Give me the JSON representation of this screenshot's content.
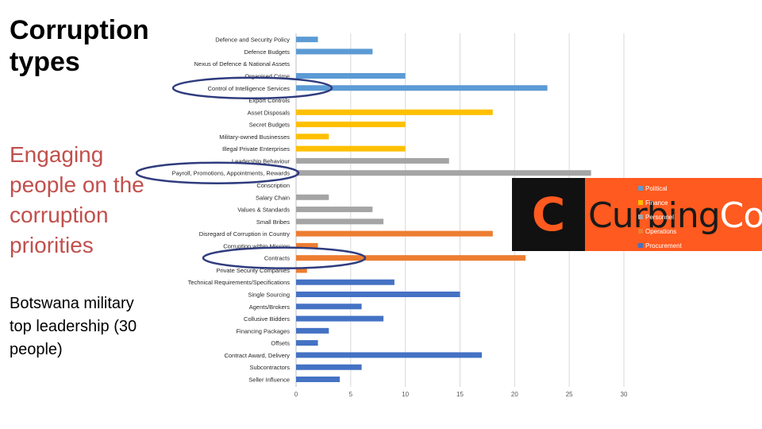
{
  "slide": {
    "title": "Corruption types",
    "subtitle": "Engaging people on the corruption priorities",
    "note": "Botswana military top leadership (30 people)"
  },
  "logo": {
    "mark": "C",
    "text_dark": "Curbing",
    "text_light": "Corru"
  },
  "chart_data": {
    "type": "bar",
    "orientation": "horizontal",
    "xlim": [
      0,
      30
    ],
    "xticks": [
      0,
      5,
      10,
      15,
      20,
      25,
      30
    ],
    "grid": true,
    "legend_position": "right",
    "series": [
      {
        "name": "Political",
        "color": "#5b9bd5"
      },
      {
        "name": "Finance",
        "color": "#ffc000"
      },
      {
        "name": "Personnel",
        "color": "#a5a5a5"
      },
      {
        "name": "Operations",
        "color": "#ed7d31"
      },
      {
        "name": "Procurement",
        "color": "#4472c4"
      }
    ],
    "categories": [
      {
        "label": "Defence and Security Policy",
        "value": 2,
        "series": 0
      },
      {
        "label": "Defence Budgets",
        "value": 7,
        "series": 0
      },
      {
        "label": "Nexus of Defence & National Assets",
        "value": 0,
        "series": 0
      },
      {
        "label": "Organised Crime",
        "value": 10,
        "series": 0
      },
      {
        "label": "Control of Intelligence Services",
        "value": 23,
        "series": 0
      },
      {
        "label": "Export Controls",
        "value": 0,
        "series": 0
      },
      {
        "label": "Asset Disposals",
        "value": 18,
        "series": 1
      },
      {
        "label": "Secret Budgets",
        "value": 10,
        "series": 1
      },
      {
        "label": "Military-owned Businesses",
        "value": 3,
        "series": 1
      },
      {
        "label": "Illegal Private Enterprises",
        "value": 10,
        "series": 1
      },
      {
        "label": "Leadership Behaviour",
        "value": 14,
        "series": 2
      },
      {
        "label": "Payroll, Promotions, Appointments, Rewards",
        "value": 27,
        "series": 2
      },
      {
        "label": "Conscription",
        "value": 0,
        "series": 2
      },
      {
        "label": "Salary Chain",
        "value": 3,
        "series": 2
      },
      {
        "label": "Values & Standards",
        "value": 7,
        "series": 2
      },
      {
        "label": "Small Bribes",
        "value": 8,
        "series": 2
      },
      {
        "label": "Disregard of Corruption in Country",
        "value": 18,
        "series": 3
      },
      {
        "label": "Corruption within Mission",
        "value": 2,
        "series": 3
      },
      {
        "label": "Contracts",
        "value": 21,
        "series": 3
      },
      {
        "label": "Private Security Companies",
        "value": 1,
        "series": 3
      },
      {
        "label": "Technical Requirements/Specifications",
        "value": 9,
        "series": 4
      },
      {
        "label": "Single Sourcing",
        "value": 15,
        "series": 4
      },
      {
        "label": "Agents/Brokers",
        "value": 6,
        "series": 4
      },
      {
        "label": "Collusive Bidders",
        "value": 8,
        "series": 4
      },
      {
        "label": "Financing Packages",
        "value": 3,
        "series": 4
      },
      {
        "label": "Offsets",
        "value": 2,
        "series": 4
      },
      {
        "label": "Contract Award, Delivery",
        "value": 17,
        "series": 4
      },
      {
        "label": "Subcontractors",
        "value": 6,
        "series": 4
      },
      {
        "label": "Seller Influence",
        "value": 4,
        "series": 4
      }
    ],
    "highlighted": [
      "Control of Intelligence Services",
      "Payroll, Promotions, Appointments, Rewards",
      "Contracts"
    ],
    "highlight_color": "#2f3c7e"
  }
}
